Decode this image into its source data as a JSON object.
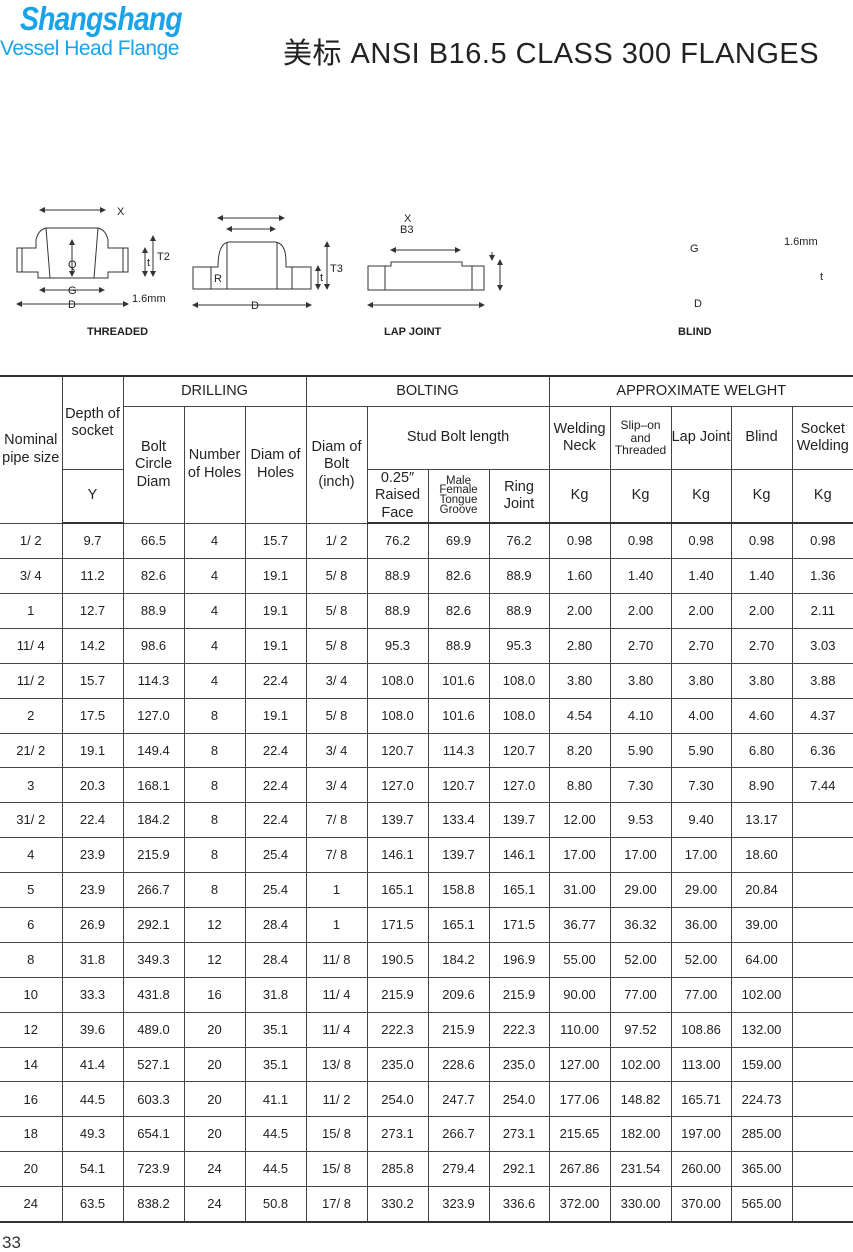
{
  "brand": {
    "name": "Shangshang",
    "tagline": "Vessel Head Flange",
    "logo_color": "#1aa3e8"
  },
  "title": "美标 ANSI B16.5 CLASS 300 FLANGES",
  "diagrams": {
    "threaded": {
      "caption": "THREADED",
      "x": "X",
      "q": "Q",
      "g": "G",
      "d": "D",
      "t": "t",
      "t2": "T2",
      "raised": "1.6mm"
    },
    "lap_joint": {
      "caption": "LAP JOINT",
      "x": "X",
      "b3": "B3",
      "r": "R",
      "d": "D",
      "t": "t",
      "t3": "T3"
    },
    "blind": {
      "caption": "BLIND",
      "g": "G",
      "d": "D",
      "t": "t",
      "raised": "1.6mm"
    }
  },
  "table": {
    "headers": {
      "nominal": "Nominal pipe size",
      "depth": "Depth of socket",
      "drilling": "DRILLING",
      "bolting": "BOLTING",
      "weight": "APPROXIMATE WELGHT",
      "bolt_circle": "Bolt Circle Diam",
      "num_holes": "Number of Holes",
      "diam_holes": "Diam of Holes",
      "diam_bolt": "Diam of Bolt (inch)",
      "stud": "Stud Bolt length",
      "welding_neck": "Welding Neck",
      "slip_on": "Slip–on and Threaded",
      "lap_joint": "Lap Joint",
      "blind": "Blind",
      "socket_welding": "Socket Welding",
      "y": "Y",
      "raised_face": "0.25″ Raised Face",
      "male_female": "Male Female Tongue Groove",
      "ring_joint": "Ring Joint",
      "kg": "Kg"
    },
    "rows": [
      [
        "1/ 2",
        "9.7",
        "66.5",
        "4",
        "15.7",
        "1/ 2",
        "76.2",
        "69.9",
        "76.2",
        "0.98",
        "0.98",
        "0.98",
        "0.98",
        "0.98"
      ],
      [
        "3/ 4",
        "11.2",
        "82.6",
        "4",
        "19.1",
        "5/ 8",
        "88.9",
        "82.6",
        "88.9",
        "1.60",
        "1.40",
        "1.40",
        "1.40",
        "1.36"
      ],
      [
        "1",
        "12.7",
        "88.9",
        "4",
        "19.1",
        "5/ 8",
        "88.9",
        "82.6",
        "88.9",
        "2.00",
        "2.00",
        "2.00",
        "2.00",
        "2.11"
      ],
      [
        "11/ 4",
        "14.2",
        "98.6",
        "4",
        "19.1",
        "5/ 8",
        "95.3",
        "88.9",
        "95.3",
        "2.80",
        "2.70",
        "2.70",
        "2.70",
        "3.03"
      ],
      [
        "11/ 2",
        "15.7",
        "114.3",
        "4",
        "22.4",
        "3/ 4",
        "108.0",
        "101.6",
        "108.0",
        "3.80",
        "3.80",
        "3.80",
        "3.80",
        "3.88"
      ],
      [
        "2",
        "17.5",
        "127.0",
        "8",
        "19.1",
        "5/ 8",
        "108.0",
        "101.6",
        "108.0",
        "4.54",
        "4.10",
        "4.00",
        "4.60",
        "4.37"
      ],
      [
        "21/ 2",
        "19.1",
        "149.4",
        "8",
        "22.4",
        "3/ 4",
        "120.7",
        "114.3",
        "120.7",
        "8.20",
        "5.90",
        "5.90",
        "6.80",
        "6.36"
      ],
      [
        "3",
        "20.3",
        "168.1",
        "8",
        "22.4",
        "3/ 4",
        "127.0",
        "120.7",
        "127.0",
        "8.80",
        "7.30",
        "7.30",
        "8.90",
        "7.44"
      ],
      [
        "31/ 2",
        "22.4",
        "184.2",
        "8",
        "22.4",
        "7/ 8",
        "139.7",
        "133.4",
        "139.7",
        "12.00",
        "9.53",
        "9.40",
        "13.17",
        ""
      ],
      [
        "4",
        "23.9",
        "215.9",
        "8",
        "25.4",
        "7/ 8",
        "146.1",
        "139.7",
        "146.1",
        "17.00",
        "17.00",
        "17.00",
        "18.60",
        ""
      ],
      [
        "5",
        "23.9",
        "266.7",
        "8",
        "25.4",
        "1",
        "165.1",
        "158.8",
        "165.1",
        "31.00",
        "29.00",
        "29.00",
        "20.84",
        ""
      ],
      [
        "6",
        "26.9",
        "292.1",
        "12",
        "28.4",
        "1",
        "171.5",
        "165.1",
        "171.5",
        "36.77",
        "36.32",
        "36.00",
        "39.00",
        ""
      ],
      [
        "8",
        "31.8",
        "349.3",
        "12",
        "28.4",
        "11/ 8",
        "190.5",
        "184.2",
        "196.9",
        "55.00",
        "52.00",
        "52.00",
        "64.00",
        ""
      ],
      [
        "10",
        "33.3",
        "431.8",
        "16",
        "31.8",
        "11/ 4",
        "215.9",
        "209.6",
        "215.9",
        "90.00",
        "77.00",
        "77.00",
        "102.00",
        ""
      ],
      [
        "12",
        "39.6",
        "489.0",
        "20",
        "35.1",
        "11/ 4",
        "222.3",
        "215.9",
        "222.3",
        "110.00",
        "97.52",
        "108.86",
        "132.00",
        ""
      ],
      [
        "14",
        "41.4",
        "527.1",
        "20",
        "35.1",
        "13/ 8",
        "235.0",
        "228.6",
        "235.0",
        "127.00",
        "102.00",
        "113.00",
        "159.00",
        ""
      ],
      [
        "16",
        "44.5",
        "603.3",
        "20",
        "41.1",
        "11/ 2",
        "254.0",
        "247.7",
        "254.0",
        "177.06",
        "148.82",
        "165.71",
        "224.73",
        ""
      ],
      [
        "18",
        "49.3",
        "654.1",
        "20",
        "44.5",
        "15/ 8",
        "273.1",
        "266.7",
        "273.1",
        "215.65",
        "182.00",
        "197.00",
        "285.00",
        ""
      ],
      [
        "20",
        "54.1",
        "723.9",
        "24",
        "44.5",
        "15/ 8",
        "285.8",
        "279.4",
        "292.1",
        "267.86",
        "231.54",
        "260.00",
        "365.00",
        ""
      ],
      [
        "24",
        "63.5",
        "838.2",
        "24",
        "50.8",
        "17/ 8",
        "330.2",
        "323.9",
        "336.6",
        "372.00",
        "330.00",
        "370.00",
        "565.00",
        ""
      ]
    ]
  },
  "page_number": "33"
}
